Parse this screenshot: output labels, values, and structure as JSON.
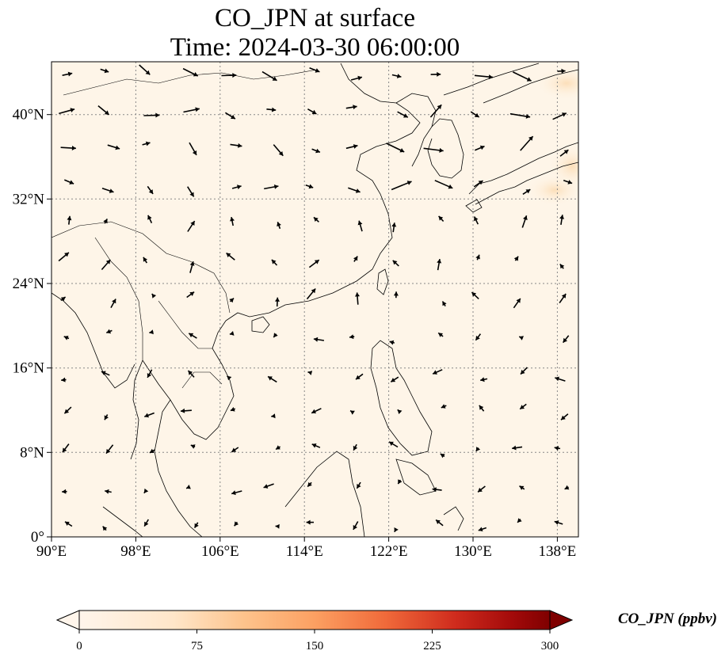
{
  "figure": {
    "title_line1": "CO_JPN at surface",
    "title_line2": "Time: 2024-03-30 06:00:00"
  },
  "map": {
    "lon_ticks": [
      "90°E",
      "98°E",
      "106°E",
      "114°E",
      "122°E",
      "130°E",
      "138°E"
    ],
    "lat_ticks": [
      "0°",
      "8°N",
      "16°N",
      "24°N",
      "32°N",
      "40°N"
    ],
    "lon_range": [
      90,
      140
    ],
    "lat_range": [
      0,
      45
    ],
    "gridlines": true,
    "background_color": "#fef5e8",
    "field_note_high_values": "light orange near Japan (upper right)"
  },
  "colorbar": {
    "label": "CO_JPN (ppbv)",
    "ticks": [
      "0",
      "75",
      "150",
      "225",
      "300"
    ],
    "min": 0,
    "max": 300,
    "extend": "both",
    "colors": [
      "#fff5eb",
      "#fdd8a8",
      "#fdae6b",
      "#f16913",
      "#d94801",
      "#a50f15",
      "#7f0000"
    ]
  }
}
